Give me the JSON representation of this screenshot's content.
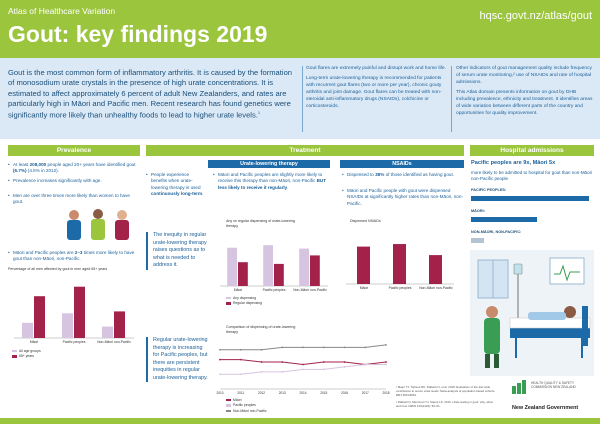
{
  "header": {
    "atlas": "Atlas of Healthcare Variation",
    "title": "Gout: key findings 2019",
    "url": "hqsc.govt.nz/atlas/gout"
  },
  "intro": {
    "lead": "Gout is the most common form of inflammatory arthritis. It is caused by the formation of monosodium urate crystals in the presence of high urate concentrations. It is estimated to affect approximately 6 percent of adult New Zealanders, and rates are particularly high in Māori and Pacific men. Recent research has found genetics were significantly more likely than unhealthy foods to lead to higher urate levels.",
    "lead_ref": "1",
    "col1": [
      "Gout flares are extremely painful and disrupt work and home life.",
      "Long-term urate-lowering therapy is recommended for patients with recurrent gout flares (two or more per year), chronic gouty arthritis and joint damage. Gout flares can be treated with non-steroidal anti-inflammatory drugs (NSAIDs), colchicine or corticosteroids."
    ],
    "col2": [
      "Other indicators of gout management quality include frequency of serum urate monitoring,² use of NSAIDs and rate of hospital admissions.",
      "This Atlas domain presents information on gout by DHB including prevalence, ethnicity and treatment. It identifies areas of wide variation between different parts of the country and opportunities for quality improvement."
    ]
  },
  "sections": {
    "prevalence": "Prevalence",
    "treatment": "Treatment",
    "hospital": "Hospital admissions",
    "urate": "Urate-lowering therapy",
    "nsaids": "NSAIDs"
  },
  "prevalence": {
    "b1_pre": "At least ",
    "b1_bold": "208,000",
    "b1_mid": " people aged 20+ years have identified gout ",
    "b1_bold2": "(6.7%)",
    "b1_post": " (4.5% in 2012).",
    "b2": "Prevalence increases significantly with age.",
    "b3": "Men are over three times more likely than women to have gout.",
    "b4_pre": "Māori and Pacific peoples are ",
    "b4_bold": "2–3",
    "b4_post": " times more likely to have gout than non-Māori, non-Pacific.",
    "chart_title": "Percentage of all men affected by gout in men aged 65+ years",
    "legend": [
      "All age groups",
      "65+ years"
    ]
  },
  "urate": {
    "b1_pre": "People experience benefits when urate-lowering therapy is used ",
    "b1_bold": "continuously long-term",
    "b1_post": ".",
    "b2_pre": "Māori and Pacific peoples are slightly more likely to receive this therapy than non-Māori, non-Pacific ",
    "b2_bold": "BUT less likely to receive it regularly",
    "b2_post": ".",
    "callout1": "The inequity in regular urate-lowering therapy raises questions as to what is needed to address it.",
    "callout2": "Regular urate-lowering therapy is increasing for Pacific peoples, but there are persistent inequities in regular urate-lowering therapy.",
    "chart1_title": "Any vs regular dispensing of urate-lowering therapy",
    "chart1_legend": [
      "Any dispensing",
      "Regular dispensing"
    ],
    "chart2_title": "Comparison of dispensing of urate-lowering therapy",
    "chart2_legend": [
      "Māori",
      "Pacific peoples",
      "Non-Māori non-Pacific"
    ]
  },
  "nsaids": {
    "b1_pre": "Dispensed to ",
    "b1_bold": "38%",
    "b1_post": " of those identified as having gout.",
    "b2": "Māori and Pacific people with gout were dispensed NSAIDs at significantly higher rates than non-Māori, non-Pacific.",
    "chart_title": "Dispensed NSAIDs"
  },
  "hospital": {
    "lead": "Pacific peoples are 9x, Māori 5x",
    "sub": "more likely to be admitted to hospital for gout than non-Māori non-Pacific people",
    "labels": [
      "PACIFIC PEOPLES:",
      "MĀORI:",
      "NON-MĀORI, NON-PACIFIC:"
    ]
  },
  "refs": [
    "¹ Major TJ, Topless RK, Dalbeth N, et al. 2018. Evaluation of the diet wide contribution to serum urate levels: Meta-analysis of population based cohorts. BMJ 363:k3951.",
    "² Dalbeth N, Merriman TJ, Stamp LK. 2016. Urate testing in gout: why, when and how. NZMJ 129(1432): 59–61."
  ],
  "logos": {
    "hqsc": "HEALTH QUALITY & SAFETY COMMISSION NEW ZEALAND",
    "nzgov": "New Zealand Government"
  },
  "colors": {
    "green": "#9bc53d",
    "blue": "#1d6aa8",
    "maroon": "#a3224a",
    "light_purple": "#d7c4e0",
    "light_green": "#c9e08e"
  },
  "chart_data": [
    {
      "type": "bar",
      "categories": [
        "Māori",
        "Pacific peoples",
        "Non-Māori non-Pacific"
      ],
      "series": [
        {
          "name": "All age groups",
          "values": [
            8,
            13,
            6
          ]
        },
        {
          "name": "65+ years",
          "values": [
            22,
            27,
            14
          ]
        }
      ],
      "ylim": [
        0,
        30
      ]
    },
    {
      "type": "bar",
      "categories": [
        "Māori",
        "Pacific peoples",
        "Non-Māori non-Pacific"
      ],
      "series": [
        {
          "name": "Any dispensing",
          "values": [
            45,
            48,
            44
          ]
        },
        {
          "name": "Regular dispensing",
          "values": [
            28,
            26,
            36
          ]
        }
      ],
      "ylim": [
        0,
        60
      ]
    },
    {
      "type": "bar",
      "title": "Dispensed NSAIDs",
      "categories": [
        "Māori",
        "Pacific peoples",
        "Non-Māori non-Pacific"
      ],
      "values": [
        44,
        47,
        34
      ],
      "ylim": [
        0,
        60
      ]
    },
    {
      "type": "line",
      "x": [
        "2010",
        "2011",
        "2012",
        "2013",
        "2014",
        "2015",
        "2016",
        "2017",
        "2018"
      ],
      "series": [
        {
          "name": "Māori",
          "values": [
            32,
            32,
            31,
            31,
            30,
            31,
            31,
            30,
            31
          ]
        },
        {
          "name": "Pacific peoples",
          "values": [
            26,
            26,
            27,
            27,
            28,
            28,
            29,
            30,
            30
          ]
        },
        {
          "name": "Non-Māori non-Pacific",
          "values": [
            36,
            36,
            36,
            37,
            37,
            37,
            37,
            37,
            38
          ]
        }
      ],
      "ylim": [
        20,
        40
      ]
    }
  ]
}
